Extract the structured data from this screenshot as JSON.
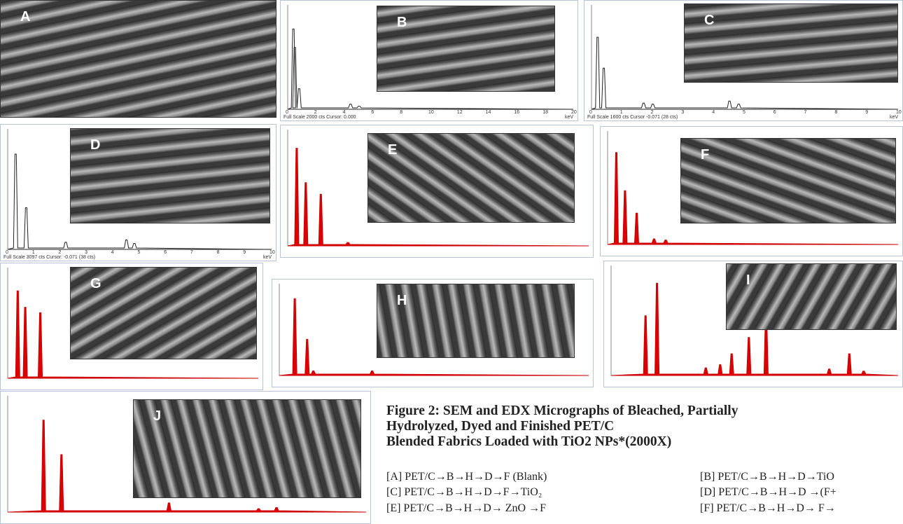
{
  "panels": [
    {
      "label": "A"
    },
    {
      "label": "B",
      "xticks": [
        "0",
        "2",
        "4",
        "6",
        "8",
        "10",
        "12",
        "14",
        "16",
        "18",
        "20"
      ],
      "footer": "Full Scale 2000 cts Cursor: 0.000",
      "unit": "keV"
    },
    {
      "label": "C",
      "xticks": [
        "0",
        "1",
        "2",
        "3",
        "4",
        "5",
        "6",
        "7",
        "8",
        "9",
        "10"
      ],
      "footer": "Full Scale 1600 cts Cursor -0.071 (28 cts)",
      "unit": "keV"
    },
    {
      "label": "D",
      "xticks": [
        "0",
        "1",
        "2",
        "3",
        "4",
        "5",
        "6",
        "7",
        "8",
        "9",
        "10"
      ],
      "footer": "Full Scale 3097 cts Cursor: -0.071 (38 cts)",
      "unit": "keV"
    },
    {
      "label": "E"
    },
    {
      "label": "F"
    },
    {
      "label": "G"
    },
    {
      "label": "H"
    },
    {
      "label": "I"
    },
    {
      "label": "J"
    }
  ],
  "caption": {
    "lines": [
      "Figure 2: SEM and EDX Micrographs of Bleached, Partially",
      "Hydrolyzed, Dyed and Finished PET/C",
      "Blended Fabrics Loaded with TiO2 NPs*(2000X)"
    ]
  },
  "legend": [
    [
      "[A] PET/C→B→H→D→F (Blank)",
      "[B] PET/C→B→H→D→TiO"
    ],
    [
      "[C] PET/C→B→H→D→F→TiO₂",
      "[D] PET/C→B→H→D →(F+"
    ],
    [
      "[E] PET/C→B→H→D→ ZnO →F",
      "[F] PET/C→B→H→D→ F→"
    ]
  ]
}
